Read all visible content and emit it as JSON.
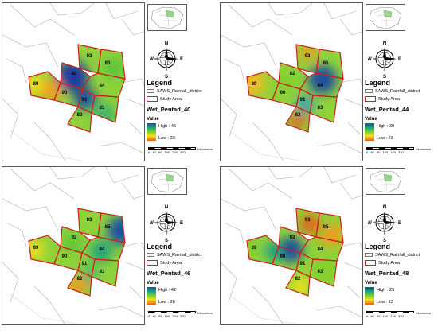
{
  "legend": {
    "title": "Legend",
    "boundary_label": "SAWS_Rainfall_district",
    "study_label": "Study Area",
    "value_label": "Value"
  },
  "compass": {
    "n": "N",
    "s": "S",
    "e": "E",
    "w": "W"
  },
  "scale": {
    "ticks": "0 40 80 160 240 320",
    "unit": "Kilometers"
  },
  "district_ids": [
    "93",
    "85",
    "92",
    "89",
    "90",
    "84",
    "91",
    "82",
    "83"
  ],
  "colors": {
    "study_border": "#cc2020",
    "high": "#1f4d9e",
    "mid": "#7fd02a",
    "low": "#e65a18"
  },
  "panels": [
    {
      "name": "Wet_Pentad_40",
      "high": "High : 45",
      "low": "Low : 23"
    },
    {
      "name": "Wet_Pentad_44",
      "high": "High : 39",
      "low": "Low : 23"
    },
    {
      "name": "Wet_Pentad_46",
      "high": "High : 42",
      "low": "Low : 26"
    },
    {
      "name": "Wet_Pentad_48",
      "high": "High : 29",
      "low": "Low : 13"
    }
  ]
}
